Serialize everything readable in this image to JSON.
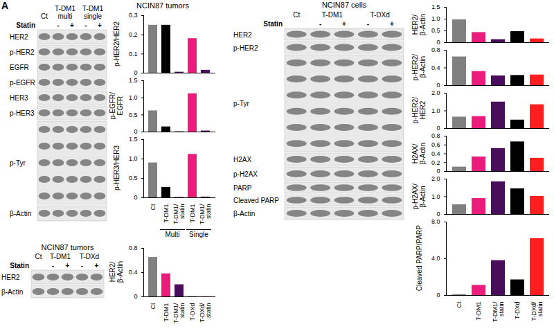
{
  "panel_label": "A",
  "blots": [
    {
      "header": [
        {
          "label": "Ct",
          "lanes": 1
        },
        {
          "label": "T-DM1 multi",
          "lanes": 2
        },
        {
          "label": "T-DM1 single",
          "lanes": 2
        }
      ],
      "statin_label": "Statin",
      "statin": [
        null,
        "-",
        "+",
        "-",
        "+"
      ],
      "rows": [
        "HER2",
        "p-HER2",
        "EGFR",
        "p-EGFR",
        "HER3",
        "p-HER3",
        "p-Tyr",
        "β-Actin"
      ]
    },
    {
      "title": "NCIN87 tumors",
      "header": [
        {
          "label": "Ct",
          "lanes": 1
        },
        {
          "label": "T-DM1",
          "lanes": 2
        },
        {
          "label": "T-DXd",
          "lanes": 2
        }
      ],
      "statin_label": "Statin",
      "statin": [
        null,
        "-",
        "+",
        "-",
        "+"
      ],
      "rows": [
        "HER2",
        "β-Actin"
      ]
    },
    {
      "title": "NCIN87 cells",
      "header": [
        {
          "label": "Ct",
          "lanes": 1
        },
        {
          "label": "T-DM1",
          "lanes": 2
        },
        {
          "label": "T-DXd",
          "lanes": 2
        }
      ],
      "statin_label": "Statin",
      "statin": [
        null,
        "-",
        "+",
        "-",
        "+"
      ],
      "rows": [
        "HER2",
        "p-HER2",
        "p-Tyr",
        "H2AX",
        "p-H2AX",
        "PARP",
        "Cleaved PARP",
        "β-Actin"
      ]
    }
  ],
  "chart_data": [
    {
      "type": "bar",
      "title": "NCIN87 tumors",
      "y_label": "p-HER2/HER2",
      "categories": [
        "Ct",
        "T-DM1",
        "T-DM1/statin",
        "T-DM1",
        "T-DM1/statin"
      ],
      "values": [
        0.25,
        0.25,
        0.005,
        0.18,
        0.015
      ],
      "colors": [
        "#808080",
        "#000000",
        "#4a0d5c",
        "#ec1c7c",
        "#4a0d5c"
      ],
      "ylim": [
        0,
        0.3
      ],
      "yticks": [
        0,
        0.1,
        0.2,
        0.3
      ],
      "tick_labels": "y"
    },
    {
      "type": "bar",
      "y_label": "p-EGFR/EGFR",
      "categories": [
        "Ct",
        "T-DM1",
        "T-DM1/statin",
        "T-DM1",
        "T-DM1/statin"
      ],
      "values": [
        0.62,
        0.15,
        0.01,
        1.12,
        0.03
      ],
      "colors": [
        "#808080",
        "#000000",
        "#4a0d5c",
        "#ec1c7c",
        "#4a0d5c"
      ],
      "ylim": [
        0,
        1.5
      ],
      "yticks": [
        0,
        0.5,
        {
          "value": 1,
          "label": "1.0"
        },
        1.5
      ],
      "tick_labels": "y"
    },
    {
      "type": "bar",
      "y_label": "p-HER3/HER3",
      "categories": [
        "Ct",
        "T-DM1",
        "T-DM1/statin",
        "T-DM1",
        "T-DM1/statin"
      ],
      "values": [
        0.9,
        0.27,
        0.01,
        1.12,
        0.02
      ],
      "colors": [
        "#808080",
        "#000000",
        "#4a0d5c",
        "#ec1c7c",
        "#4a0d5c"
      ],
      "ylim": [
        0,
        1.5
      ],
      "yticks": [
        0,
        0.5,
        {
          "value": 1,
          "label": "1.0"
        },
        1.5
      ],
      "x_groups": [
        {
          "label": "Multi",
          "from": 1,
          "to": 2
        },
        {
          "label": "Single",
          "from": 3,
          "to": 4
        }
      ]
    },
    {
      "type": "bar",
      "y_label": "HER2/β-Actin",
      "categories": [
        "Ct",
        "T-DM1",
        "T-DM1/statin",
        "T-DXd",
        "T-DXd/statin"
      ],
      "values": [
        0.65,
        0.38,
        0.2,
        0.003,
        0.002
      ],
      "colors": [
        "#808080",
        "#ec1c7c",
        "#4a0d5c",
        "#000000",
        "#ff1f1f"
      ],
      "ylim": [
        0,
        0.8
      ],
      "yticks": [
        0,
        0.4,
        0.8
      ]
    },
    {
      "type": "bar",
      "y_label": "HER2/β-Actin",
      "categories": [
        "Ct",
        "T-DM1",
        "T-DM1/statin",
        "T-DXd",
        "T-DXd/statin"
      ],
      "values": [
        0.97,
        0.43,
        0.13,
        0.47,
        0.16
      ],
      "colors": [
        "#808080",
        "#ec1c7c",
        "#4a0d5c",
        "#000000",
        "#ff1f1f"
      ],
      "ylim": [
        0,
        1.5
      ],
      "yticks": [
        0,
        0.5,
        {
          "value": 1,
          "label": "1.0"
        },
        1.5
      ],
      "tick_labels": "y"
    },
    {
      "type": "bar",
      "y_label": "p-HER2/β-Actin",
      "categories": [
        "Ct",
        "T-DM1",
        "T-DM1/statin",
        "T-DXd",
        "T-DXd/statin"
      ],
      "values": [
        0.65,
        0.32,
        0.22,
        0.23,
        0.24
      ],
      "colors": [
        "#808080",
        "#ec1c7c",
        "#4a0d5c",
        "#000000",
        "#ff1f1f"
      ],
      "ylim": [
        0,
        0.8
      ],
      "yticks": [
        0,
        0.4,
        0.8
      ],
      "tick_labels": "y"
    },
    {
      "type": "bar",
      "y_label": "p-HER2/HER2",
      "categories": [
        "Ct",
        "T-DM1",
        "T-DM1/statin",
        "T-DXd",
        "T-DXd/statin"
      ],
      "values": [
        0.65,
        0.68,
        1.5,
        0.48,
        1.35
      ],
      "colors": [
        "#808080",
        "#ec1c7c",
        "#4a0d5c",
        "#000000",
        "#ff1f1f"
      ],
      "ylim": [
        0,
        2
      ],
      "yticks": [
        0,
        {
          "value": 1,
          "label": "1.0"
        },
        {
          "value": 2,
          "label": "2.0"
        }
      ],
      "tick_labels": "y"
    },
    {
      "type": "bar",
      "y_label": "H2AX/β-Actin",
      "categories": [
        "Ct",
        "T-DM1",
        "T-DM1/statin",
        "T-DXd",
        "T-DXd/statin"
      ],
      "values": [
        0.1,
        0.33,
        0.52,
        0.67,
        0.3
      ],
      "colors": [
        "#808080",
        "#ec1c7c",
        "#4a0d5c",
        "#000000",
        "#ff1f1f"
      ],
      "ylim": [
        0,
        0.8
      ],
      "yticks": [
        0,
        0.2,
        0.4,
        0.6,
        0.8
      ],
      "tick_labels": "y"
    },
    {
      "type": "bar",
      "y_label": "p-H2AX/β-Actin",
      "categories": [
        "Ct",
        "T-DM1",
        "T-DM1/statin",
        "T-DXd",
        "T-DXd/statin"
      ],
      "values": [
        0.55,
        0.9,
        1.85,
        1.45,
        1.02
      ],
      "colors": [
        "#808080",
        "#ec1c7c",
        "#4a0d5c",
        "#000000",
        "#ff1f1f"
      ],
      "ylim": [
        0,
        2
      ],
      "yticks": [
        0,
        {
          "value": 1,
          "label": "1.0"
        },
        {
          "value": 2,
          "label": "2.0"
        }
      ],
      "tick_labels": "y"
    },
    {
      "type": "bar",
      "y_label": "Cleaved PARP/PARP",
      "categories": [
        "Ct",
        "T-DM1",
        "T-DM1/statin",
        "T-DXd",
        "T-DXd/statin"
      ],
      "values": [
        0.1,
        1.1,
        3.8,
        1.7,
        6.2
      ],
      "colors": [
        "#808080",
        "#ec1c7c",
        "#4a0d5c",
        "#000000",
        "#ff1f1f"
      ],
      "ylim": [
        0,
        8
      ],
      "yticks": [
        0,
        {
          "value": 4,
          "label": "4.0"
        },
        {
          "value": 8,
          "label": "8.0"
        }
      ]
    }
  ]
}
